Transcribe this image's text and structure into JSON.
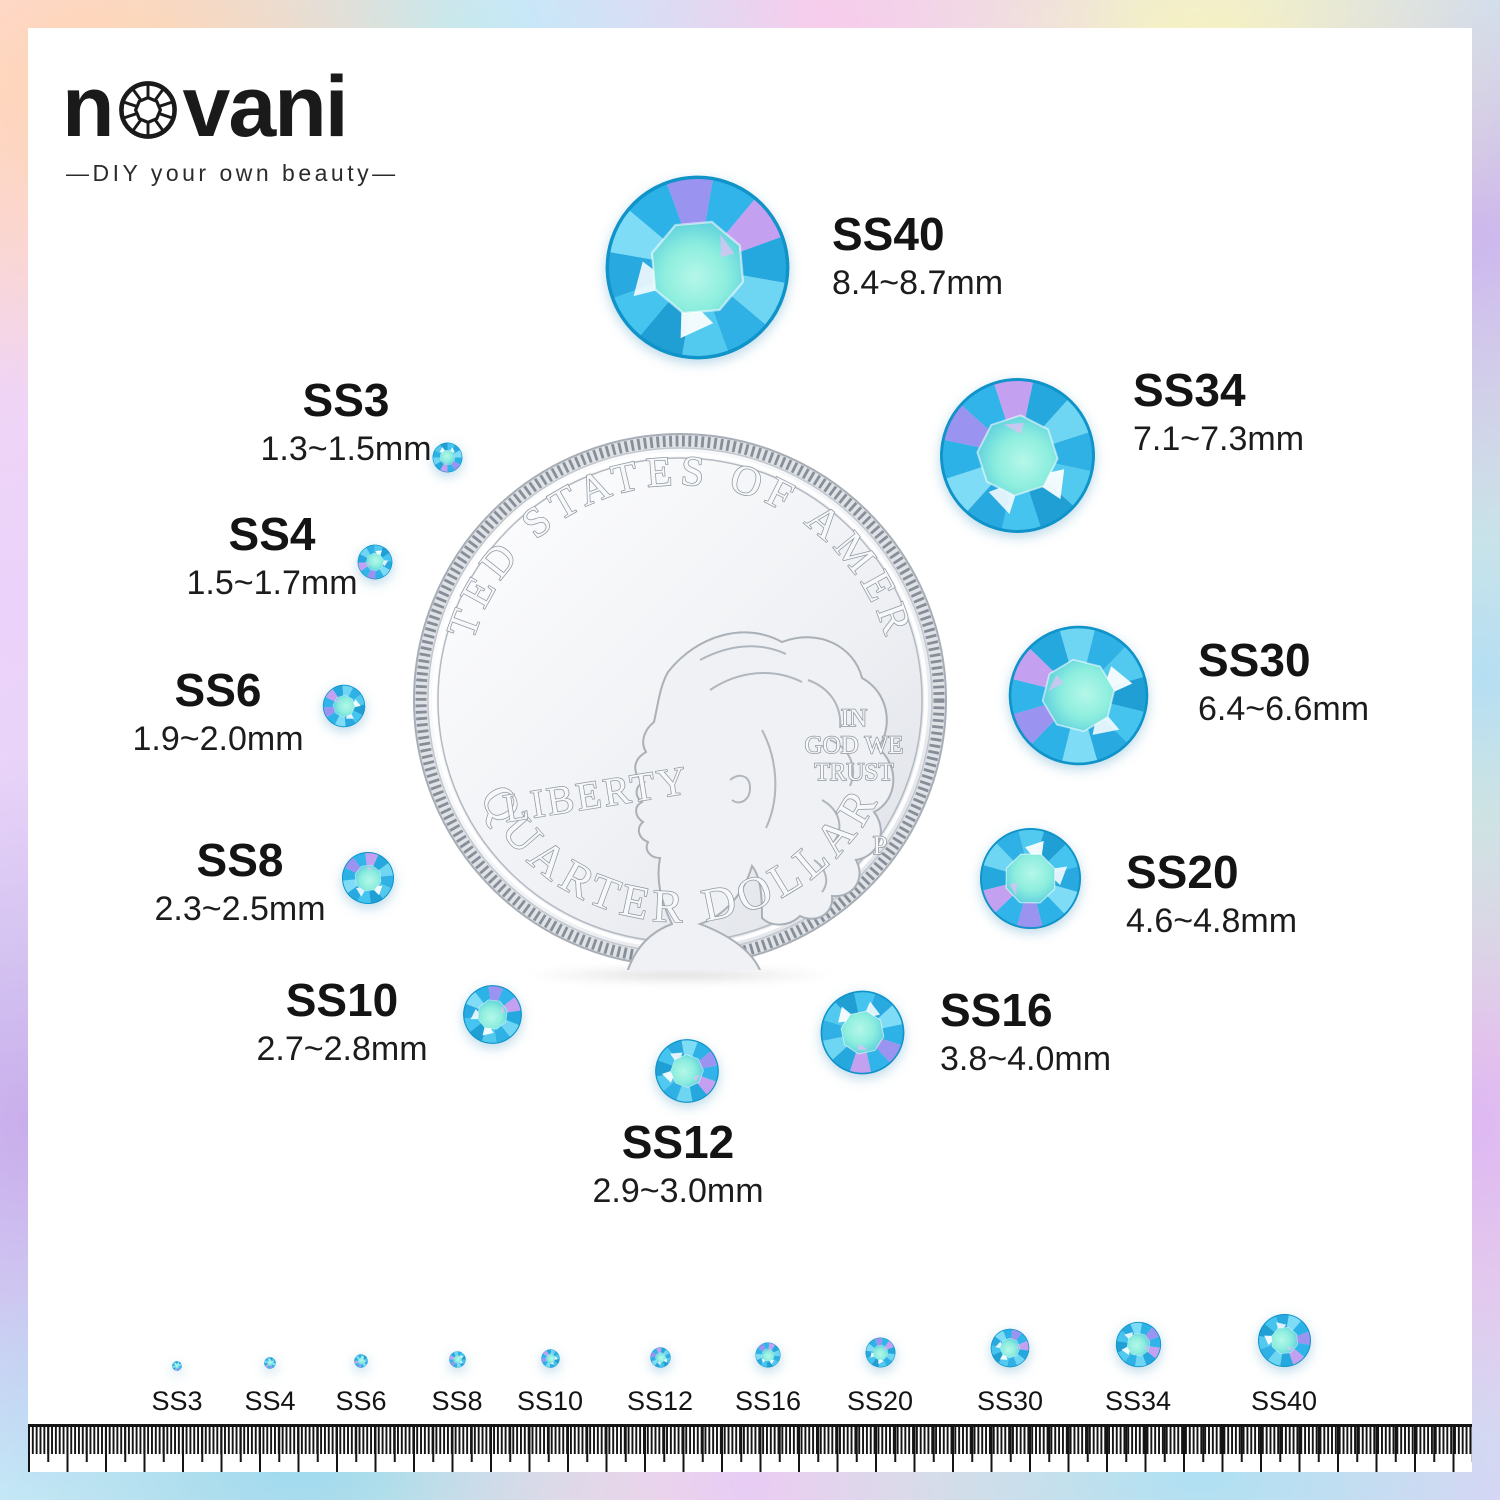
{
  "brand": {
    "name_start": "n",
    "name_end": "vani",
    "gem_letter": "o",
    "tagline": "—DIY your own beauty—"
  },
  "coin": {
    "top_text": "UNITED STATES OF AMERICA",
    "liberty": "LIBERTY",
    "motto": [
      "IN",
      "GOD WE",
      "TRUST"
    ],
    "mint_mark": "P",
    "denomination": "QUARTER DOLLAR"
  },
  "sizes": [
    {
      "code": "SS3",
      "range_mm": "1.3~1.5mm"
    },
    {
      "code": "SS4",
      "range_mm": "1.5~1.7mm"
    },
    {
      "code": "SS6",
      "range_mm": "1.9~2.0mm"
    },
    {
      "code": "SS8",
      "range_mm": "2.3~2.5mm"
    },
    {
      "code": "SS10",
      "range_mm": "2.7~2.8mm"
    },
    {
      "code": "SS12",
      "range_mm": "2.9~3.0mm"
    },
    {
      "code": "SS16",
      "range_mm": "3.8~4.0mm"
    },
    {
      "code": "SS20",
      "range_mm": "4.6~4.8mm"
    },
    {
      "code": "SS30",
      "range_mm": "6.4~6.6mm"
    },
    {
      "code": "SS34",
      "range_mm": "7.1~7.3mm"
    },
    {
      "code": "SS40",
      "range_mm": "8.4~8.7mm"
    }
  ],
  "colors": {
    "stone_primary": "#2fb3e8",
    "stone_table": "#8deede",
    "stone_ab_accent": "#c3a0f0",
    "text": "#1c1c1c"
  }
}
